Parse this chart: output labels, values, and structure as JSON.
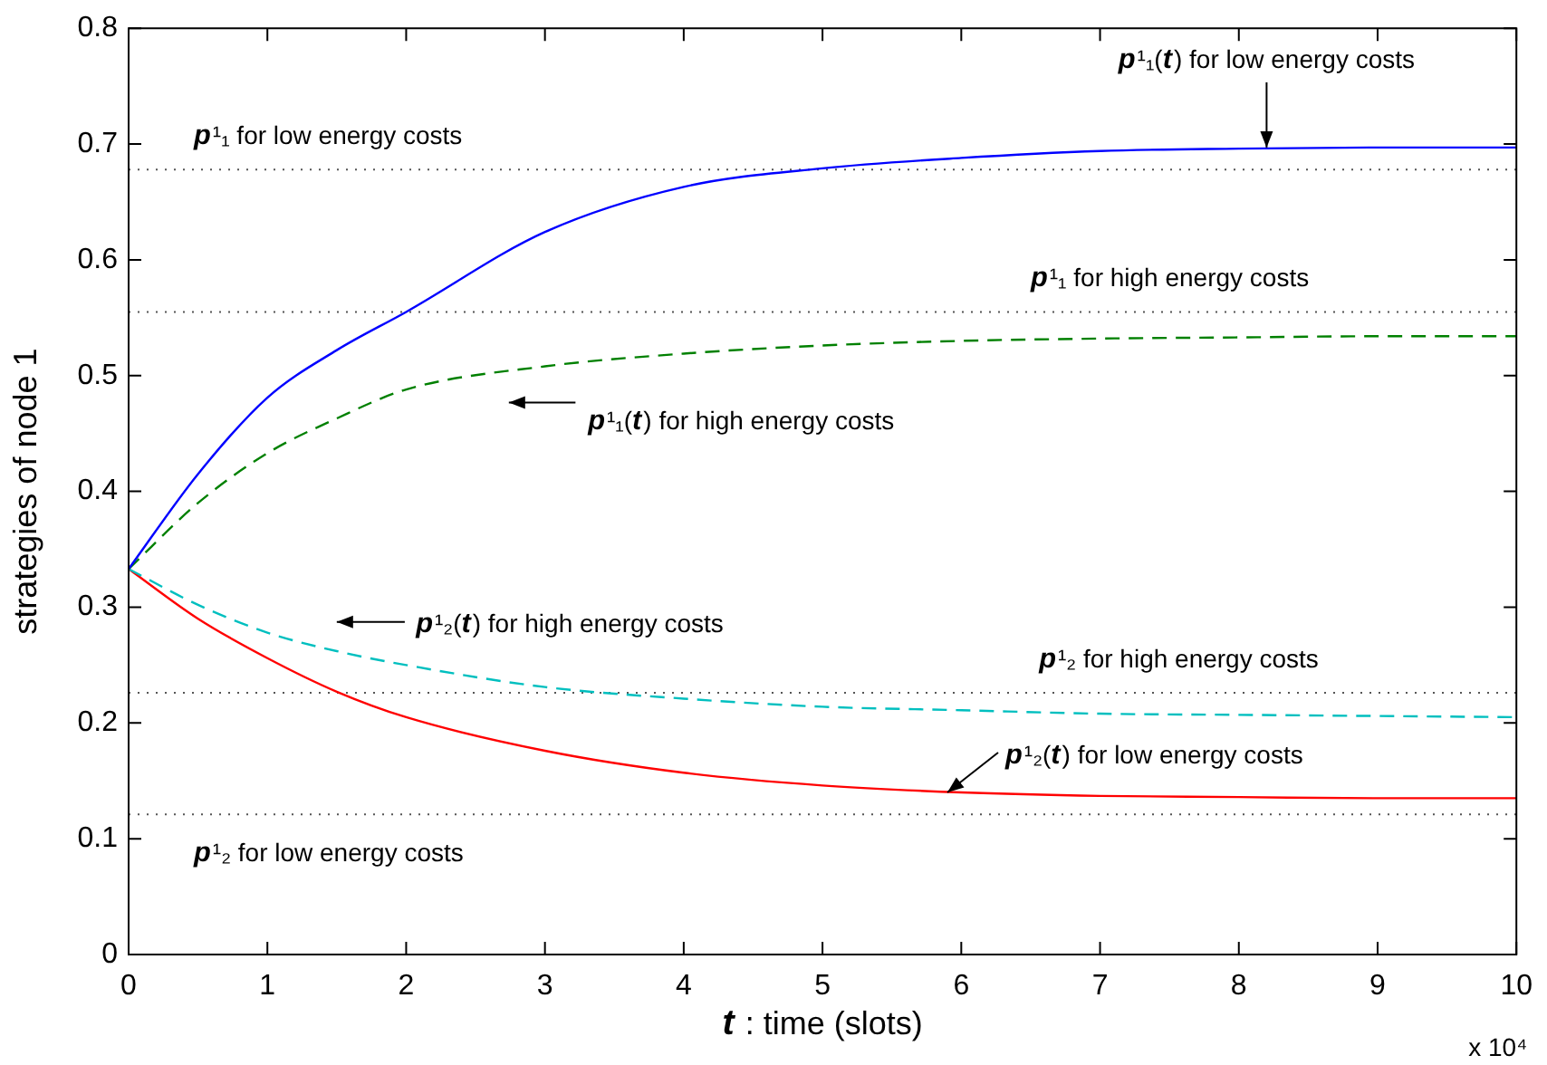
{
  "chart_data": {
    "type": "line",
    "xlabel": "t : time (slots)",
    "ylabel": "strategies of node 1",
    "x": [
      0,
      0.5,
      1,
      1.5,
      2,
      3,
      4,
      5,
      6,
      7,
      8,
      9,
      10
    ],
    "series": [
      {
        "color": "#0000ff",
        "line_style": "solid",
        "values": [
          0.333,
          0.415,
          0.481,
          0.522,
          0.555,
          0.624,
          0.663,
          0.679,
          0.688,
          0.694,
          0.696,
          0.697,
          0.697
        ]
      },
      {
        "color": "#008000",
        "line_style": "dashed",
        "values": [
          0.333,
          0.39,
          0.433,
          0.463,
          0.488,
          0.508,
          0.519,
          0.526,
          0.53,
          0.532,
          0.533,
          0.534,
          0.534
        ]
      },
      {
        "color": "#00bfbf",
        "line_style": "dashed",
        "values": [
          0.333,
          0.302,
          0.278,
          0.262,
          0.25,
          0.231,
          0.221,
          0.214,
          0.211,
          0.208,
          0.207,
          0.206,
          0.205
        ]
      },
      {
        "color": "#ff0000",
        "line_style": "solid",
        "values": [
          0.333,
          0.29,
          0.256,
          0.227,
          0.205,
          0.176,
          0.157,
          0.146,
          0.14,
          0.137,
          0.136,
          0.135,
          0.135
        ]
      }
    ],
    "xlim": [
      0,
      10
    ],
    "xticks": [
      0,
      1,
      2,
      3,
      4,
      5,
      6,
      7,
      8,
      9,
      10
    ],
    "ylim": [
      0,
      0.8
    ],
    "yticks": [
      0,
      0.1,
      0.2,
      0.3,
      0.4,
      0.5,
      0.6,
      0.7,
      0.8
    ],
    "ref_lines": [
      {
        "axis": "y",
        "value": 0.678,
        "label": "p¹₁ for low energy costs",
        "color": "#555555",
        "line_style": "dotted"
      },
      {
        "axis": "y",
        "value": 0.555,
        "label": "p¹₁ for high energy costs",
        "color": "#555555",
        "line_style": "dotted"
      },
      {
        "axis": "y",
        "value": 0.226,
        "label": "p¹₂ for high energy costs",
        "color": "#555555",
        "line_style": "dotted"
      },
      {
        "axis": "y",
        "value": 0.121,
        "label": "p¹₂ for low energy costs",
        "color": "#555555",
        "line_style": "dotted"
      }
    ],
    "annotations": [
      {
        "text": "p¹₁(t) for low energy costs",
        "x": 8.2,
        "y": 0.697
      },
      "p¹₁(t) for high energy costs",
      "p¹₂(t) for high energy costs",
      {
        "text": "p¹₂(t) for low energy costs",
        "x": 5.9,
        "y": 0.14
      },
      "x 10⁴"
    ],
    "legend": false,
    "marker": "none"
  }
}
